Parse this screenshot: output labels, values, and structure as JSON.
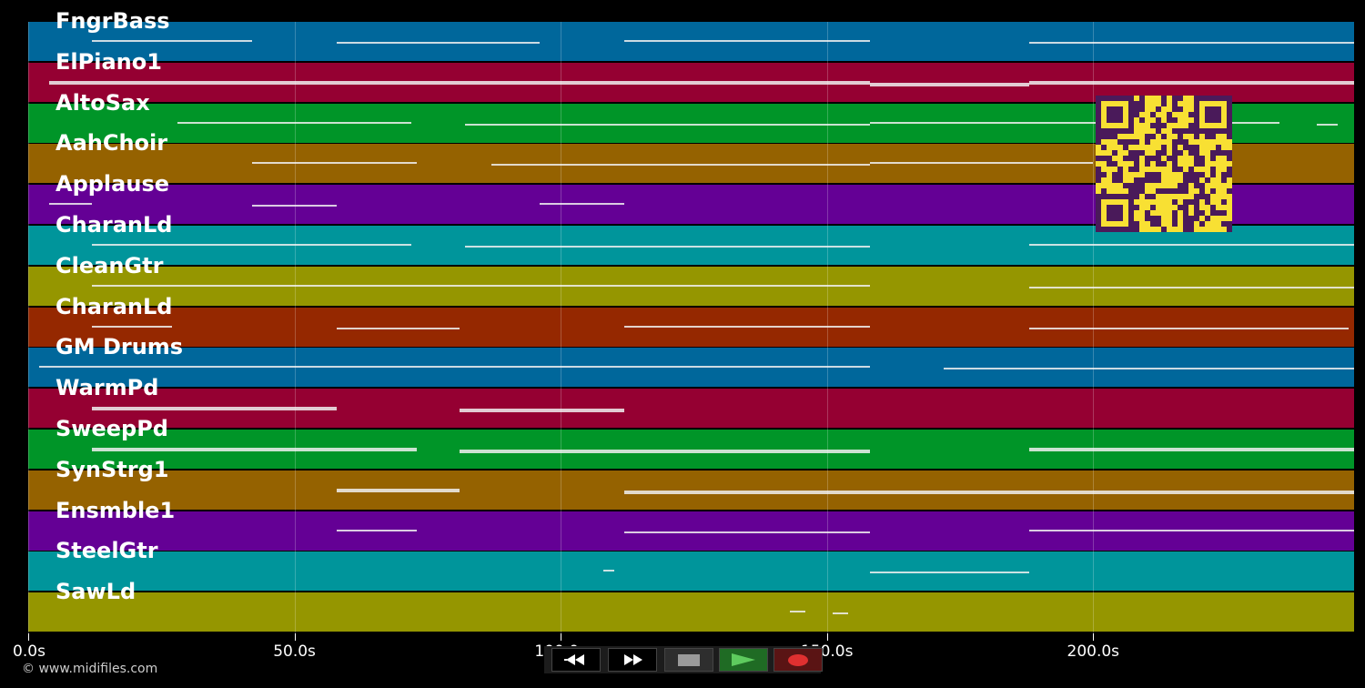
{
  "tracks": [
    {
      "name": "FngrBass",
      "color": "#00679b"
    },
    {
      "name": "ElPiano1",
      "color": "#950032"
    },
    {
      "name": "AltoSax",
      "color": "#009528"
    },
    {
      "name": "AahChoir",
      "color": "#956200"
    },
    {
      "name": "Applause",
      "color": "#640095"
    },
    {
      "name": "CharanLd",
      "color": "#00959b"
    },
    {
      "name": "CleanGtr",
      "color": "#959600"
    },
    {
      "name": "CharanLd",
      "color": "#952800"
    },
    {
      "name": "GM Drums",
      "color": "#00679b"
    },
    {
      "name": "WarmPd",
      "color": "#950032"
    },
    {
      "name": "SweepPd",
      "color": "#009528"
    },
    {
      "name": "SynStrg1",
      "color": "#956200"
    },
    {
      "name": "Ensmble1",
      "color": "#640095"
    },
    {
      "name": "SteelGtr",
      "color": "#00959b"
    },
    {
      "name": "SawLd",
      "color": "#959600"
    }
  ],
  "time_axis": {
    "ticks": [
      {
        "value": 0,
        "label": "0.0s"
      },
      {
        "value": 50,
        "label": "50.0s"
      },
      {
        "value": 100,
        "label": "100.0s"
      },
      {
        "value": 150,
        "label": "150.0s"
      },
      {
        "value": 200,
        "label": "200.0s"
      }
    ],
    "max_seconds": 249
  },
  "footer": {
    "copyright": "© www.midifiles.com"
  },
  "transport": {
    "rewind_icon": "rewind-icon",
    "fast_forward_icon": "fast-forward-icon",
    "stop_icon": "stop-icon",
    "play_icon": "play-icon",
    "record_icon": "record-icon"
  },
  "overlay": {
    "qr_icon": "qr-code-icon",
    "qr_color": "#f8e033",
    "qr_fg": "#4a1a5a"
  }
}
